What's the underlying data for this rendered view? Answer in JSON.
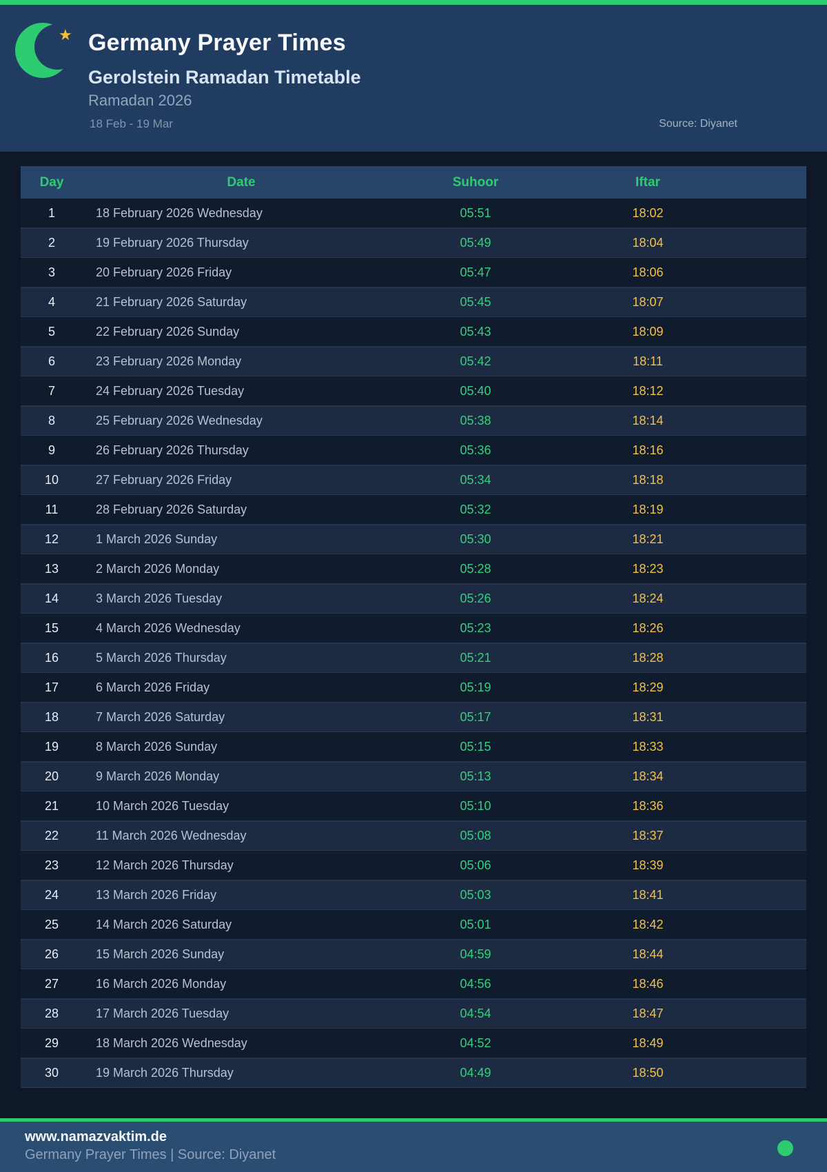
{
  "header": {
    "title": "Germany Prayer Times",
    "subtitle": "Gerolstein Ramadan Timetable",
    "season": "Ramadan 2026",
    "date_range": "18 Feb - 19 Mar",
    "source": "Source: Diyanet",
    "moon_icon": "crescent-moon",
    "star_icon": "star",
    "star_glyph": "★"
  },
  "table": {
    "columns": [
      {
        "key": "day",
        "label": "Day"
      },
      {
        "key": "date",
        "label": "Date"
      },
      {
        "key": "suhoor",
        "label": "Suhoor"
      },
      {
        "key": "iftar",
        "label": "Iftar"
      }
    ],
    "rows": [
      {
        "day": "1",
        "date": "18 February 2026 Wednesday",
        "suhoor": "05:51",
        "iftar": "18:02"
      },
      {
        "day": "2",
        "date": "19 February 2026 Thursday",
        "suhoor": "05:49",
        "iftar": "18:04"
      },
      {
        "day": "3",
        "date": "20 February 2026 Friday",
        "suhoor": "05:47",
        "iftar": "18:06"
      },
      {
        "day": "4",
        "date": "21 February 2026 Saturday",
        "suhoor": "05:45",
        "iftar": "18:07"
      },
      {
        "day": "5",
        "date": "22 February 2026 Sunday",
        "suhoor": "05:43",
        "iftar": "18:09"
      },
      {
        "day": "6",
        "date": "23 February 2026 Monday",
        "suhoor": "05:42",
        "iftar": "18:11"
      },
      {
        "day": "7",
        "date": "24 February 2026 Tuesday",
        "suhoor": "05:40",
        "iftar": "18:12"
      },
      {
        "day": "8",
        "date": "25 February 2026 Wednesday",
        "suhoor": "05:38",
        "iftar": "18:14"
      },
      {
        "day": "9",
        "date": "26 February 2026 Thursday",
        "suhoor": "05:36",
        "iftar": "18:16"
      },
      {
        "day": "10",
        "date": "27 February 2026 Friday",
        "suhoor": "05:34",
        "iftar": "18:18"
      },
      {
        "day": "11",
        "date": "28 February 2026 Saturday",
        "suhoor": "05:32",
        "iftar": "18:19"
      },
      {
        "day": "12",
        "date": "1 March 2026 Sunday",
        "suhoor": "05:30",
        "iftar": "18:21"
      },
      {
        "day": "13",
        "date": "2 March 2026 Monday",
        "suhoor": "05:28",
        "iftar": "18:23"
      },
      {
        "day": "14",
        "date": "3 March 2026 Tuesday",
        "suhoor": "05:26",
        "iftar": "18:24"
      },
      {
        "day": "15",
        "date": "4 March 2026 Wednesday",
        "suhoor": "05:23",
        "iftar": "18:26"
      },
      {
        "day": "16",
        "date": "5 March 2026 Thursday",
        "suhoor": "05:21",
        "iftar": "18:28"
      },
      {
        "day": "17",
        "date": "6 March 2026 Friday",
        "suhoor": "05:19",
        "iftar": "18:29"
      },
      {
        "day": "18",
        "date": "7 March 2026 Saturday",
        "suhoor": "05:17",
        "iftar": "18:31"
      },
      {
        "day": "19",
        "date": "8 March 2026 Sunday",
        "suhoor": "05:15",
        "iftar": "18:33"
      },
      {
        "day": "20",
        "date": "9 March 2026 Monday",
        "suhoor": "05:13",
        "iftar": "18:34"
      },
      {
        "day": "21",
        "date": "10 March 2026 Tuesday",
        "suhoor": "05:10",
        "iftar": "18:36"
      },
      {
        "day": "22",
        "date": "11 March 2026 Wednesday",
        "suhoor": "05:08",
        "iftar": "18:37"
      },
      {
        "day": "23",
        "date": "12 March 2026 Thursday",
        "suhoor": "05:06",
        "iftar": "18:39"
      },
      {
        "day": "24",
        "date": "13 March 2026 Friday",
        "suhoor": "05:03",
        "iftar": "18:41"
      },
      {
        "day": "25",
        "date": "14 March 2026 Saturday",
        "suhoor": "05:01",
        "iftar": "18:42"
      },
      {
        "day": "26",
        "date": "15 March 2026 Sunday",
        "suhoor": "04:59",
        "iftar": "18:44"
      },
      {
        "day": "27",
        "date": "16 March 2026 Monday",
        "suhoor": "04:56",
        "iftar": "18:46"
      },
      {
        "day": "28",
        "date": "17 March 2026 Tuesday",
        "suhoor": "04:54",
        "iftar": "18:47"
      },
      {
        "day": "29",
        "date": "18 March 2026 Wednesday",
        "suhoor": "04:52",
        "iftar": "18:49"
      },
      {
        "day": "30",
        "date": "19 March 2026 Thursday",
        "suhoor": "04:49",
        "iftar": "18:50"
      }
    ]
  },
  "footer": {
    "website": "www.namazvaktim.de",
    "tagline": "Germany Prayer Times | Source: Diyanet",
    "status_icon": "green-dot"
  },
  "colors": {
    "accent_green": "#2ecc71",
    "suhoor_green": "#35d07c",
    "iftar_gold": "#f0c14b",
    "header_bg": "#203d61",
    "table_header_bg": "#264569",
    "row_even_bg": "#1c2a42",
    "row_odd_bg": "#111b2e",
    "page_bg": "#0e1828",
    "footer_bg": "#2a4d72"
  }
}
